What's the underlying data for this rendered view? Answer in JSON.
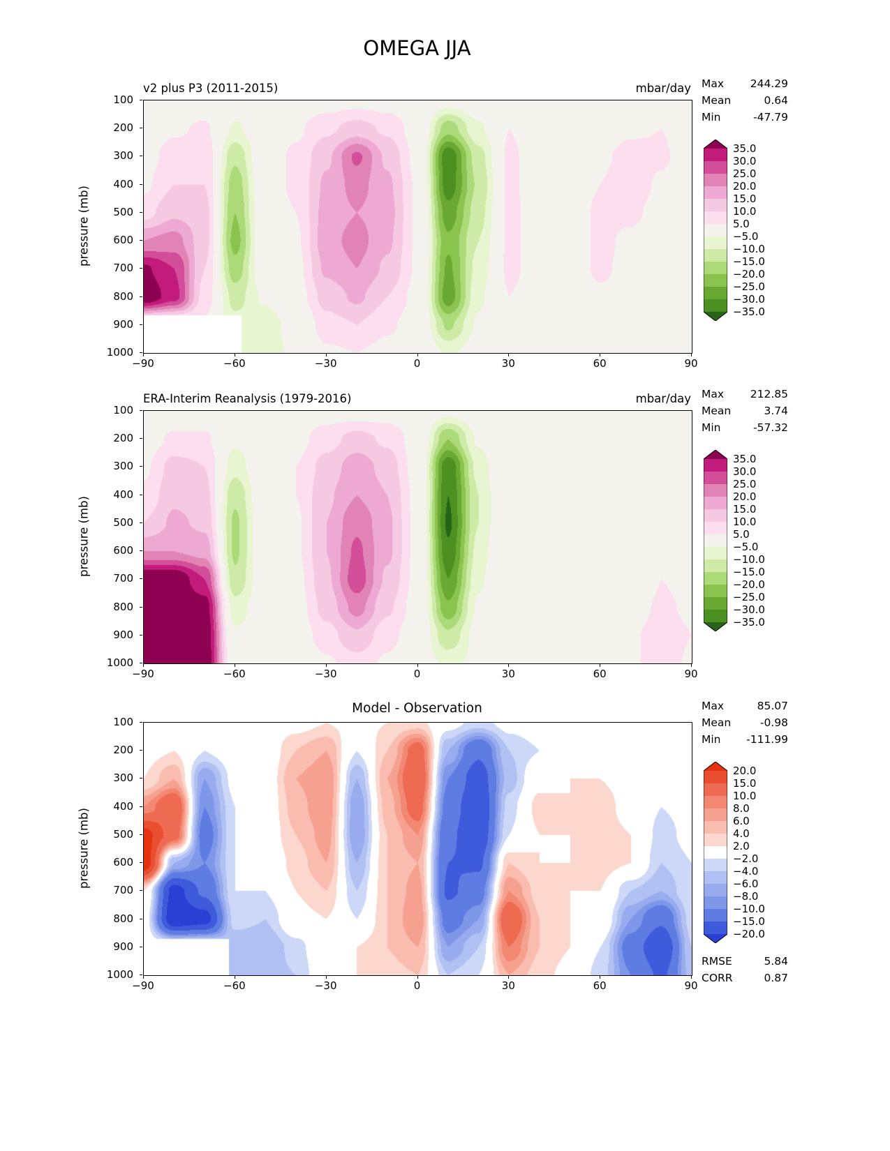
{
  "title": "OMEGA JJA",
  "labels": {
    "max": "Max",
    "mean": "Mean",
    "min": "Min",
    "rmse": "RMSE",
    "corr": "CORR"
  },
  "chart_data": [
    {
      "type": "heatmap",
      "title": "v2 plus P3 (2011-2015)",
      "units": "mbar/day",
      "stats": {
        "max": 244.29,
        "mean": 0.64,
        "min": -47.79
      },
      "ylabel": "pressure (mb)",
      "xlim": [
        -90,
        90
      ],
      "ylim": [
        1000,
        100
      ],
      "xtick_values": [
        -90,
        -60,
        -30,
        0,
        30,
        60,
        90
      ],
      "xtick_labels": [
        "−90",
        "−60",
        "−30",
        "0",
        "30",
        "60",
        "90"
      ],
      "ytick_values": [
        100,
        200,
        300,
        400,
        500,
        600,
        700,
        800,
        900,
        1000
      ],
      "ytick_labels": [
        "100",
        "200",
        "300",
        "400",
        "500",
        "600",
        "700",
        "800",
        "900",
        "1000"
      ],
      "levels": [
        -35,
        -30,
        -25,
        -20,
        -15,
        -10,
        -5,
        5,
        10,
        15,
        20,
        25,
        30,
        35
      ],
      "band_colors": [
        "#276419",
        "#4b9021",
        "#69a933",
        "#8ac34e",
        "#adda79",
        "#cdeaa7",
        "#e7f5d1",
        "#f3f2ec",
        "#fcdeee",
        "#f6c9e2",
        "#eda9d2",
        "#e283b6",
        "#d34e98",
        "#c21b7b",
        "#8e0152"
      ],
      "colorbar_tick_labels": [
        "35.0",
        "30.0",
        "25.0",
        "20.0",
        "15.0",
        "10.0",
        "5.0",
        "−5.0",
        "−10.0",
        "−15.0",
        "−20.0",
        "−25.0",
        "−30.0",
        "−35.0"
      ],
      "x_lat": [
        -90,
        -80,
        -70,
        -60,
        -50,
        -40,
        -30,
        -20,
        -10,
        0,
        10,
        20,
        30,
        40,
        50,
        60,
        70,
        80,
        90
      ],
      "y_pressure": [
        100,
        200,
        300,
        400,
        500,
        600,
        700,
        800,
        900,
        1000
      ],
      "values": [
        [
          0,
          1,
          1,
          0,
          0,
          1,
          2,
          3,
          2,
          1,
          -2,
          0,
          1,
          0,
          0,
          0,
          1,
          1,
          0
        ],
        [
          1,
          4,
          6,
          -6,
          1,
          4,
          9,
          12,
          9,
          2,
          -18,
          -6,
          5,
          2,
          1,
          2,
          4,
          5,
          1
        ],
        [
          2,
          8,
          9,
          -14,
          2,
          6,
          14,
          26,
          14,
          3,
          -34,
          -12,
          6,
          2,
          2,
          4,
          7,
          6,
          1
        ],
        [
          4,
          10,
          10,
          -18,
          2,
          6,
          16,
          22,
          16,
          4,
          -33,
          -14,
          6,
          2,
          2,
          5,
          8,
          4,
          1
        ],
        [
          8,
          14,
          12,
          -20,
          2,
          5,
          17,
          20,
          17,
          4,
          -28,
          -12,
          6,
          3,
          2,
          6,
          6,
          3,
          1
        ],
        [
          20,
          22,
          12,
          -22,
          2,
          4,
          18,
          22,
          16,
          4,
          -24,
          -10,
          6,
          3,
          2,
          6,
          4,
          2,
          1
        ],
        [
          36,
          30,
          10,
          -18,
          1,
          3,
          16,
          20,
          14,
          4,
          -26,
          -8,
          6,
          3,
          2,
          6,
          3,
          2,
          1
        ],
        [
          40,
          32,
          8,
          -12,
          -4,
          2,
          12,
          16,
          10,
          3,
          -28,
          -6,
          5,
          2,
          1,
          4,
          2,
          1,
          0
        ],
        [
          0,
          0,
          4,
          -8,
          -8,
          -2,
          8,
          10,
          6,
          2,
          -16,
          -4,
          3,
          1,
          1,
          3,
          1,
          1,
          0
        ],
        [
          0,
          0,
          2,
          -6,
          -7,
          -4,
          4,
          5,
          3,
          1,
          -6,
          -2,
          2,
          1,
          1,
          2,
          1,
          0,
          0
        ]
      ],
      "mask": {
        "lat_max": -58,
        "p_min": 865
      }
    },
    {
      "type": "heatmap",
      "title": "ERA-Interim Reanalysis (1979-2016)",
      "units": "mbar/day",
      "stats": {
        "max": 212.85,
        "mean": 3.74,
        "min": -57.32
      },
      "ylabel": "pressure (mb)",
      "xlim": [
        -90,
        90
      ],
      "ylim": [
        1000,
        100
      ],
      "xtick_values": [
        -90,
        -60,
        -30,
        0,
        30,
        60,
        90
      ],
      "xtick_labels": [
        "−90",
        "−60",
        "−30",
        "0",
        "30",
        "60",
        "90"
      ],
      "ytick_values": [
        100,
        200,
        300,
        400,
        500,
        600,
        700,
        800,
        900,
        1000
      ],
      "ytick_labels": [
        "100",
        "200",
        "300",
        "400",
        "500",
        "600",
        "700",
        "800",
        "900",
        "1000"
      ],
      "levels": [
        -35,
        -30,
        -25,
        -20,
        -15,
        -10,
        -5,
        5,
        10,
        15,
        20,
        25,
        30,
        35
      ],
      "band_colors": [
        "#276419",
        "#4b9021",
        "#69a933",
        "#8ac34e",
        "#adda79",
        "#cdeaa7",
        "#e7f5d1",
        "#f3f2ec",
        "#fcdeee",
        "#f6c9e2",
        "#eda9d2",
        "#e283b6",
        "#d34e98",
        "#c21b7b",
        "#8e0152"
      ],
      "colorbar_tick_labels": [
        "35.0",
        "30.0",
        "25.0",
        "20.0",
        "15.0",
        "10.0",
        "5.0",
        "−5.0",
        "−10.0",
        "−15.0",
        "−20.0",
        "−25.0",
        "−30.0",
        "−35.0"
      ],
      "x_lat": [
        -90,
        -80,
        -70,
        -60,
        -50,
        -40,
        -30,
        -20,
        -10,
        0,
        10,
        20,
        30,
        40,
        50,
        60,
        70,
        80,
        90
      ],
      "y_pressure": [
        100,
        200,
        300,
        400,
        500,
        600,
        700,
        800,
        900,
        1000
      ],
      "values": [
        [
          0,
          1,
          1,
          0,
          0,
          1,
          2,
          2,
          2,
          1,
          -3,
          0,
          1,
          0,
          0,
          0,
          0,
          0,
          0
        ],
        [
          2,
          6,
          6,
          -4,
          1,
          3,
          8,
          12,
          9,
          2,
          -20,
          -4,
          3,
          1,
          1,
          1,
          1,
          2,
          1
        ],
        [
          4,
          12,
          10,
          -8,
          2,
          5,
          12,
          18,
          13,
          2,
          -34,
          -8,
          4,
          2,
          1,
          1,
          2,
          3,
          1
        ],
        [
          6,
          14,
          12,
          -14,
          2,
          5,
          14,
          20,
          15,
          3,
          -35,
          -10,
          5,
          2,
          1,
          -2,
          2,
          3,
          1
        ],
        [
          10,
          16,
          14,
          -16,
          2,
          4,
          15,
          24,
          16,
          3,
          -36,
          -10,
          5,
          2,
          1,
          -4,
          2,
          4,
          2
        ],
        [
          20,
          20,
          18,
          -16,
          2,
          4,
          15,
          26,
          16,
          3,
          -34,
          -8,
          5,
          2,
          1,
          -5,
          -3,
          4,
          2
        ],
        [
          40,
          40,
          30,
          -14,
          1,
          3,
          14,
          28,
          14,
          3,
          -30,
          -6,
          5,
          2,
          1,
          -4,
          -3,
          5,
          3
        ],
        [
          42,
          42,
          38,
          -8,
          0,
          2,
          12,
          22,
          11,
          2,
          -24,
          -4,
          4,
          2,
          1,
          -3,
          2,
          6,
          4
        ],
        [
          44,
          44,
          40,
          -4,
          -2,
          1,
          8,
          14,
          7,
          1,
          -14,
          -2,
          2,
          1,
          1,
          1,
          4,
          8,
          5
        ],
        [
          44,
          44,
          40,
          -2,
          -3,
          -2,
          4,
          8,
          4,
          -2,
          -6,
          -4,
          1,
          1,
          1,
          2,
          4,
          8,
          4
        ]
      ],
      "mask": null
    },
    {
      "type": "heatmap",
      "title": "Model - Observation",
      "units": "",
      "stats": {
        "max": 85.07,
        "mean": -0.98,
        "min": -111.99
      },
      "extra": {
        "rmse": 5.84,
        "corr": 0.87
      },
      "ylabel": "pressure (mb)",
      "xlim": [
        -90,
        90
      ],
      "ylim": [
        1000,
        100
      ],
      "xtick_values": [
        -90,
        -60,
        -30,
        0,
        30,
        60,
        90
      ],
      "xtick_labels": [
        "−90",
        "−60",
        "−30",
        "0",
        "30",
        "60",
        "90"
      ],
      "ytick_values": [
        100,
        200,
        300,
        400,
        500,
        600,
        700,
        800,
        900,
        1000
      ],
      "ytick_labels": [
        "100",
        "200",
        "300",
        "400",
        "500",
        "600",
        "700",
        "800",
        "900",
        "1000"
      ],
      "levels": [
        -20,
        -15,
        -10,
        -8,
        -6,
        -4,
        -2,
        2,
        4,
        6,
        8,
        10,
        15,
        20
      ],
      "band_colors": [
        "#2a3fd4",
        "#3d5bdb",
        "#5f7ce3",
        "#7f97e9",
        "#98abee",
        "#b1c0f2",
        "#cdd7f7",
        "#ffffff",
        "#fbd7cd",
        "#f9bcae",
        "#f6a18f",
        "#f28872",
        "#ee6a50",
        "#e94e30",
        "#e73212"
      ],
      "colorbar_tick_labels": [
        "20.0",
        "15.0",
        "10.0",
        "8.0",
        "6.0",
        "4.0",
        "2.0",
        "−2.0",
        "−4.0",
        "−6.0",
        "−8.0",
        "−10.0",
        "−15.0",
        "−20.0"
      ],
      "x_lat": [
        -90,
        -80,
        -70,
        -60,
        -50,
        -40,
        -30,
        -20,
        -10,
        0,
        10,
        20,
        30,
        40,
        50,
        60,
        70,
        80,
        90
      ],
      "y_pressure": [
        100,
        200,
        300,
        400,
        500,
        600,
        700,
        800,
        900,
        1000
      ],
      "values": [
        [
          0,
          0,
          0,
          0,
          0,
          1,
          2,
          1,
          2,
          3,
          -1,
          -3,
          -1,
          0,
          0,
          0,
          0,
          0,
          0
        ],
        [
          1,
          2,
          -2,
          0,
          0,
          4,
          6,
          -2,
          4,
          12,
          -6,
          -14,
          -4,
          -2,
          1,
          1,
          0,
          -1,
          0
        ],
        [
          2,
          6,
          -8,
          -1,
          0,
          6,
          8,
          -6,
          6,
          14,
          -10,
          -18,
          -5,
          1,
          2,
          2,
          1,
          -2,
          -1
        ],
        [
          8,
          14,
          -10,
          -2,
          0,
          5,
          8,
          -8,
          5,
          12,
          -12,
          -20,
          -3,
          3,
          2,
          3,
          1,
          -2,
          -1
        ],
        [
          22,
          12,
          -12,
          -2,
          0,
          4,
          7,
          -8,
          4,
          8,
          -14,
          -19,
          -2,
          2,
          2,
          3,
          2,
          -3,
          -1
        ],
        [
          24,
          -6,
          -10,
          -2,
          -1,
          3,
          6,
          -6,
          4,
          6,
          -15,
          -16,
          4,
          2,
          2,
          3,
          2,
          -4,
          -2
        ],
        [
          2,
          -22,
          -14,
          -2,
          -2,
          2,
          4,
          -4,
          4,
          7,
          -16,
          -12,
          8,
          3,
          2,
          2,
          -4,
          -6,
          -2
        ],
        [
          0,
          -24,
          -22,
          -3,
          -4,
          1,
          2,
          -2,
          4,
          8,
          -12,
          -8,
          14,
          4,
          2,
          1,
          -8,
          -14,
          -3
        ],
        [
          0,
          0,
          0,
          -6,
          -6,
          -3,
          1,
          2,
          4,
          6,
          -8,
          -4,
          10,
          4,
          2,
          -2,
          -12,
          -20,
          -4
        ],
        [
          0,
          0,
          0,
          -5,
          -5,
          -4,
          1,
          2,
          3,
          4,
          -4,
          -2,
          6,
          3,
          1,
          -3,
          -10,
          -16,
          -5
        ]
      ],
      "mask": {
        "lat_max": -62,
        "p_min": 870
      }
    }
  ]
}
